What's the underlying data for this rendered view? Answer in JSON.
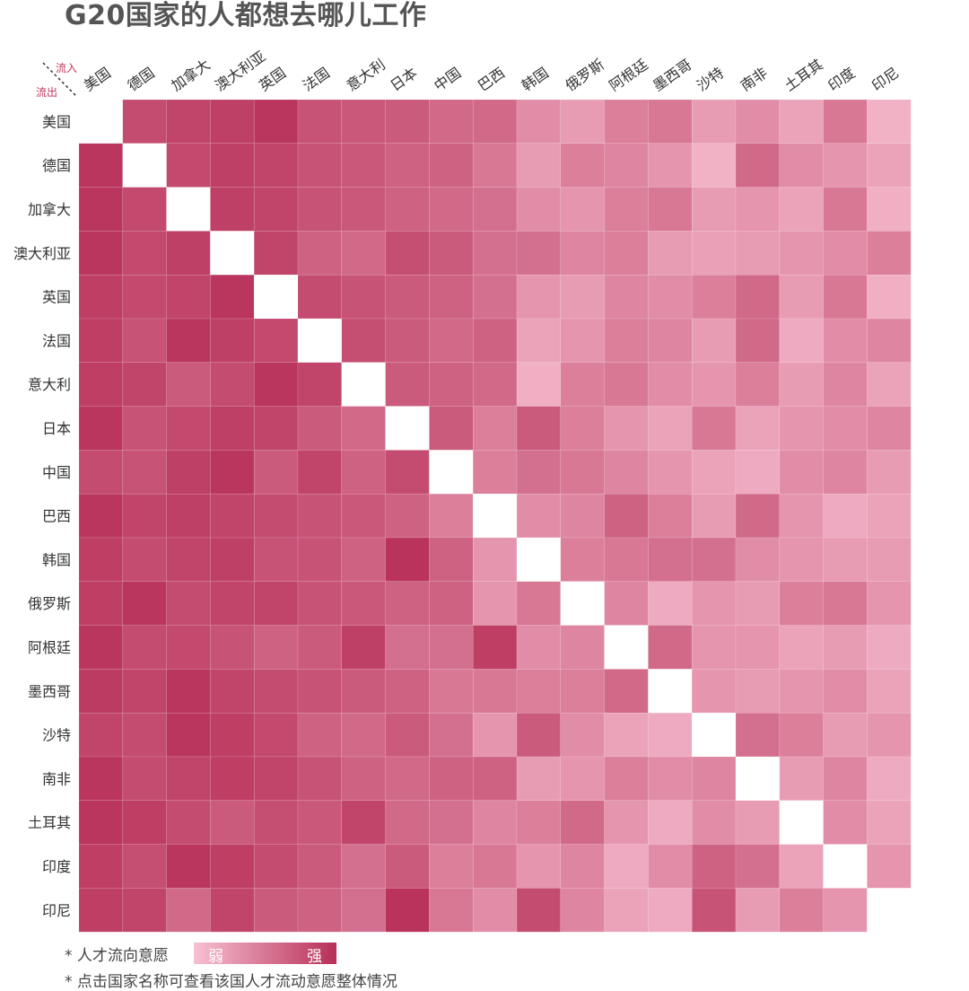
{
  "title": "G20国家的人都想去哪儿工作",
  "corner": {
    "in_label": "流入",
    "out_label": "流出"
  },
  "legend": {
    "label": "* 人才流向意愿",
    "weak": "弱",
    "strong": "强"
  },
  "note": "* 点击国家名称可查看该国人才流动意愿整体情况",
  "colors": {
    "weak": "#f8c0d2",
    "strong": "#b72f58",
    "diagonal": "#ffffff",
    "corner_accent": "#c2375e"
  },
  "chart_data": {
    "type": "heatmap",
    "x_axis_name": "流入",
    "y_axis_name": "流出",
    "x": [
      "美国",
      "德国",
      "加拿大",
      "澳大利亚",
      "英国",
      "法国",
      "意大利",
      "日本",
      "中国",
      "巴西",
      "韩国",
      "俄罗斯",
      "阿根廷",
      "墨西哥",
      "沙特",
      "南非",
      "土耳其",
      "印度",
      "印尼"
    ],
    "y": [
      "美国",
      "德国",
      "加拿大",
      "澳大利亚",
      "英国",
      "法国",
      "意大利",
      "日本",
      "中国",
      "巴西",
      "韩国",
      "俄罗斯",
      "阿根廷",
      "墨西哥",
      "沙特",
      "南非",
      "土耳其",
      "印度",
      "印尼"
    ],
    "value_range": [
      0,
      1
    ],
    "values": [
      [
        null,
        0.8,
        0.85,
        0.88,
        0.95,
        0.75,
        0.72,
        0.7,
        0.6,
        0.6,
        0.35,
        0.25,
        0.45,
        0.5,
        0.25,
        0.35,
        0.2,
        0.5,
        0.1
      ],
      [
        0.95,
        null,
        0.82,
        0.88,
        0.85,
        0.75,
        0.72,
        0.65,
        0.65,
        0.5,
        0.25,
        0.45,
        0.4,
        0.3,
        0.1,
        0.6,
        0.35,
        0.3,
        0.2
      ],
      [
        0.95,
        0.82,
        null,
        0.88,
        0.85,
        0.75,
        0.72,
        0.65,
        0.6,
        0.55,
        0.35,
        0.3,
        0.45,
        0.5,
        0.25,
        0.3,
        0.2,
        0.5,
        0.12
      ],
      [
        0.95,
        0.82,
        0.88,
        null,
        0.85,
        0.65,
        0.6,
        0.78,
        0.7,
        0.55,
        0.55,
        0.4,
        0.45,
        0.25,
        0.22,
        0.25,
        0.3,
        0.35,
        0.45
      ],
      [
        0.9,
        0.82,
        0.85,
        0.95,
        null,
        0.8,
        0.75,
        0.7,
        0.65,
        0.55,
        0.3,
        0.25,
        0.4,
        0.35,
        0.45,
        0.6,
        0.25,
        0.5,
        0.12
      ],
      [
        0.9,
        0.75,
        0.95,
        0.88,
        0.82,
        null,
        0.78,
        0.7,
        0.6,
        0.65,
        0.2,
        0.3,
        0.45,
        0.4,
        0.25,
        0.6,
        0.15,
        0.35,
        0.4
      ],
      [
        0.9,
        0.85,
        0.7,
        0.8,
        0.95,
        0.85,
        null,
        0.7,
        0.65,
        0.6,
        0.12,
        0.45,
        0.5,
        0.35,
        0.3,
        0.45,
        0.25,
        0.4,
        0.2
      ],
      [
        0.95,
        0.75,
        0.82,
        0.88,
        0.85,
        0.7,
        0.6,
        null,
        0.7,
        0.45,
        0.7,
        0.45,
        0.3,
        0.2,
        0.5,
        0.2,
        0.3,
        0.35,
        0.4
      ],
      [
        0.8,
        0.75,
        0.88,
        0.95,
        0.7,
        0.85,
        0.65,
        0.8,
        null,
        0.45,
        0.55,
        0.5,
        0.4,
        0.3,
        0.2,
        0.15,
        0.35,
        0.4,
        0.25
      ],
      [
        0.95,
        0.85,
        0.88,
        0.85,
        0.8,
        0.75,
        0.72,
        0.65,
        0.45,
        null,
        0.35,
        0.4,
        0.65,
        0.45,
        0.25,
        0.6,
        0.3,
        0.15,
        0.2
      ],
      [
        0.9,
        0.8,
        0.85,
        0.88,
        0.75,
        0.75,
        0.65,
        0.97,
        0.65,
        0.3,
        null,
        0.45,
        0.5,
        0.55,
        0.55,
        0.35,
        0.3,
        0.25,
        0.25
      ],
      [
        0.9,
        0.95,
        0.8,
        0.85,
        0.85,
        0.75,
        0.72,
        0.65,
        0.65,
        0.3,
        0.5,
        null,
        0.4,
        0.15,
        0.3,
        0.25,
        0.45,
        0.5,
        0.3
      ],
      [
        0.95,
        0.8,
        0.82,
        0.75,
        0.65,
        0.7,
        0.88,
        0.55,
        0.55,
        0.9,
        0.35,
        0.4,
        null,
        0.6,
        0.3,
        0.3,
        0.2,
        0.25,
        0.15
      ],
      [
        0.92,
        0.85,
        0.95,
        0.85,
        0.8,
        0.75,
        0.7,
        0.65,
        0.5,
        0.5,
        0.45,
        0.45,
        0.6,
        null,
        0.3,
        0.25,
        0.3,
        0.35,
        0.2
      ],
      [
        0.85,
        0.8,
        0.95,
        0.9,
        0.82,
        0.65,
        0.6,
        0.7,
        0.55,
        0.3,
        0.7,
        0.35,
        0.2,
        0.15,
        null,
        0.55,
        0.45,
        0.25,
        0.3
      ],
      [
        0.95,
        0.8,
        0.85,
        0.9,
        0.85,
        0.75,
        0.65,
        0.6,
        0.65,
        0.65,
        0.25,
        0.3,
        0.45,
        0.35,
        0.4,
        null,
        0.25,
        0.4,
        0.15
      ],
      [
        0.95,
        0.9,
        0.8,
        0.7,
        0.78,
        0.72,
        0.85,
        0.6,
        0.55,
        0.4,
        0.45,
        0.6,
        0.3,
        0.15,
        0.35,
        0.25,
        null,
        0.35,
        0.2
      ],
      [
        0.9,
        0.78,
        0.95,
        0.9,
        0.8,
        0.7,
        0.55,
        0.7,
        0.45,
        0.5,
        0.3,
        0.4,
        0.15,
        0.35,
        0.65,
        0.55,
        0.2,
        null,
        0.3
      ],
      [
        0.9,
        0.85,
        0.6,
        0.85,
        0.7,
        0.65,
        0.55,
        0.97,
        0.5,
        0.35,
        0.8,
        0.4,
        0.2,
        0.15,
        0.75,
        0.25,
        0.45,
        0.3,
        null
      ]
    ]
  }
}
